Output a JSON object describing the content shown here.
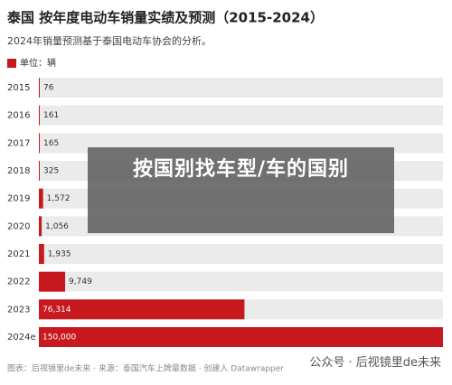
{
  "chart_data": {
    "type": "bar",
    "orientation": "horizontal",
    "title": "泰国 按年度电动车销量实绩及预测（2015-2024）",
    "subtitle": "2024年销量预测基于泰国电动车协会的分析。",
    "legend_label": "单位：辆",
    "categories": [
      "2015",
      "2016",
      "2017",
      "2018",
      "2019",
      "2020",
      "2021",
      "2022",
      "2023",
      "2024e"
    ],
    "values": [
      76,
      161,
      165,
      325,
      1572,
      1056,
      1935,
      9749,
      76314,
      150000
    ],
    "value_labels": [
      "76",
      "161",
      "165",
      "325",
      "1,572",
      "1,056",
      "1,935",
      "9,749",
      "76,314",
      "150,000"
    ],
    "color": "#c8191f",
    "xlim": [
      0,
      150000
    ]
  },
  "overlay_text": "按国别找车型/车的国别",
  "footer": "图表：后视镜里de未来 · 来源：泰国汽车上牌量数据 · 创建人 Datawrapper",
  "watermark": "公众号 · 后视镜里de未来"
}
